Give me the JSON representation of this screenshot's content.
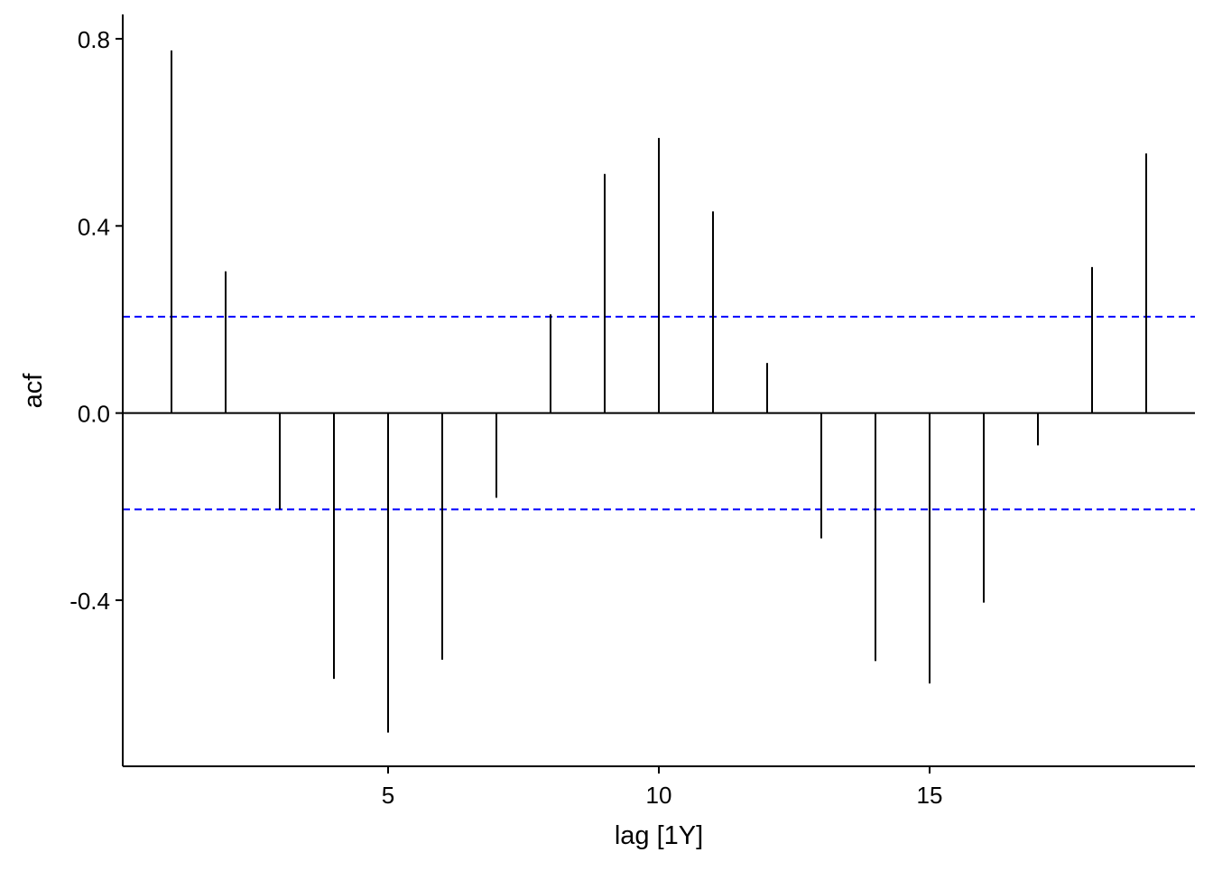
{
  "chart_data": {
    "type": "bar",
    "title": "",
    "xlabel": "lag [1Y]",
    "ylabel": "acf",
    "x_ticks": [
      5,
      10,
      15
    ],
    "y_ticks": [
      0.8,
      0.4,
      0.0,
      -0.4
    ],
    "y_tick_labels": [
      "0.8",
      "0.4",
      "0.0",
      "-0.4"
    ],
    "x_tick_labels": [
      "5",
      "10",
      "15"
    ],
    "xlim": [
      0.1,
      19.9
    ],
    "ylim": [
      -0.755,
      0.852
    ],
    "grid": false,
    "confidence_bound": 0.206,
    "confidence_color": "#0000ff",
    "lags": [
      1,
      2,
      3,
      4,
      5,
      6,
      7,
      8,
      9,
      10,
      11,
      12,
      13,
      14,
      15,
      16,
      17,
      18,
      19
    ],
    "values": [
      0.775,
      0.303,
      -0.206,
      -0.568,
      -0.683,
      -0.527,
      -0.181,
      0.211,
      0.511,
      0.588,
      0.431,
      0.107,
      -0.268,
      -0.53,
      -0.578,
      -0.405,
      -0.069,
      0.312,
      0.555
    ]
  }
}
